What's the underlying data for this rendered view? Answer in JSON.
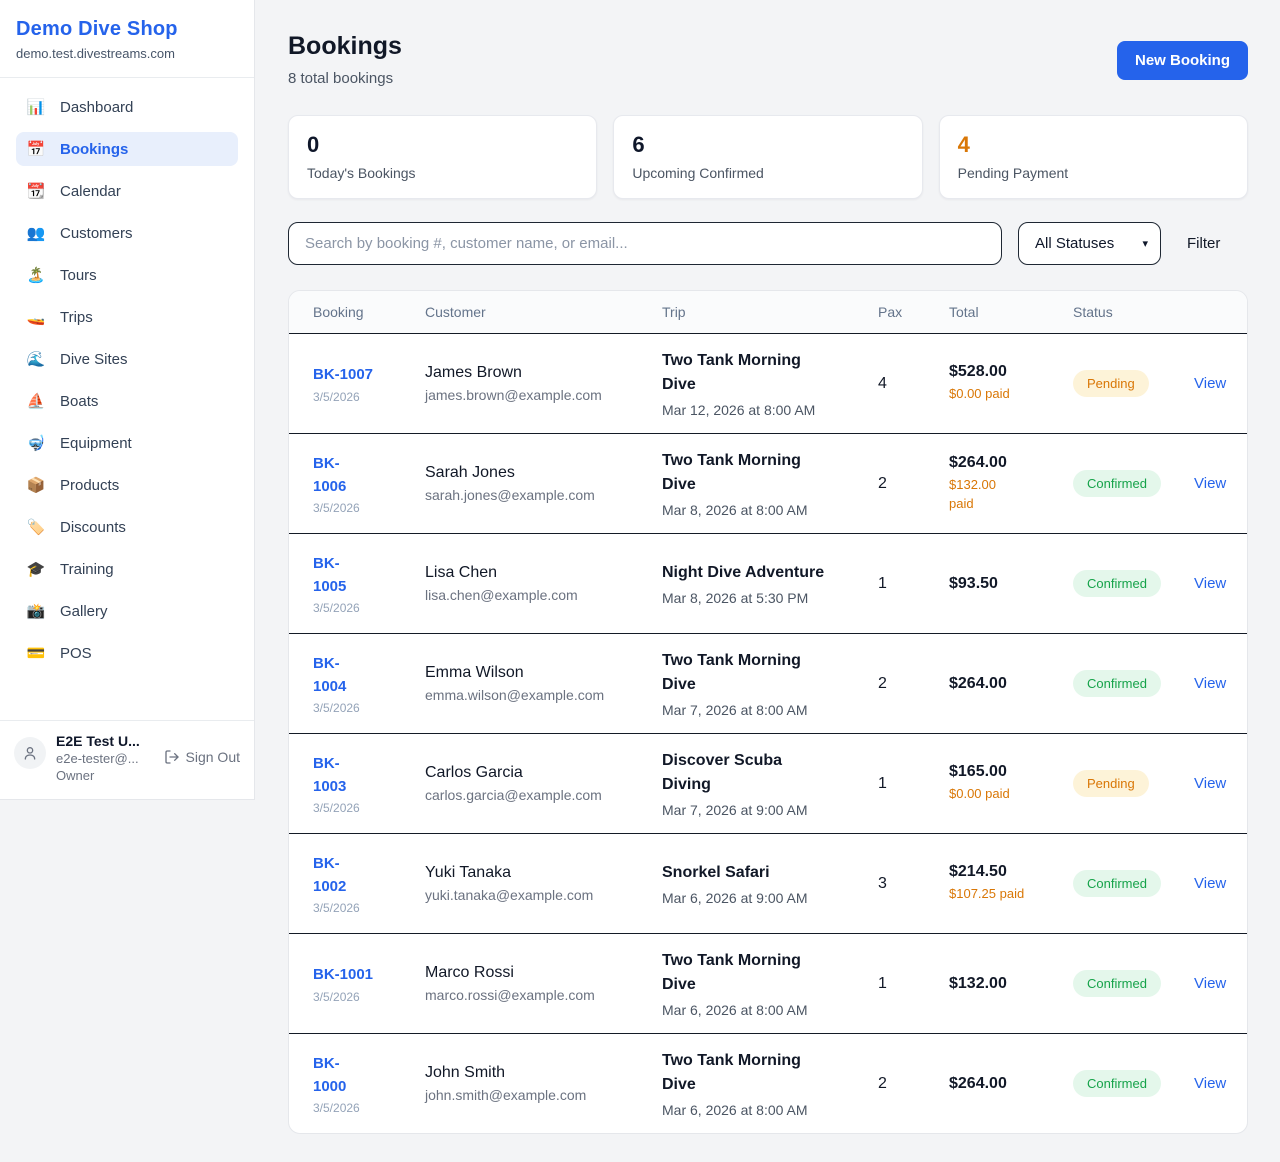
{
  "colors": {
    "accent": "#2563eb",
    "pending": "#d97706",
    "confirmed": "#16a34a"
  },
  "sidebar": {
    "shop_name": "Demo Dive Shop",
    "shop_domain": "demo.test.divestreams.com",
    "nav": [
      {
        "icon": "📊",
        "label": "Dashboard",
        "active": false
      },
      {
        "icon": "📅",
        "label": "Bookings",
        "active": true
      },
      {
        "icon": "📆",
        "label": "Calendar",
        "active": false
      },
      {
        "icon": "👥",
        "label": "Customers",
        "active": false
      },
      {
        "icon": "🏝️",
        "label": "Tours",
        "active": false
      },
      {
        "icon": "🚤",
        "label": "Trips",
        "active": false
      },
      {
        "icon": "🌊",
        "label": "Dive Sites",
        "active": false
      },
      {
        "icon": "⛵",
        "label": "Boats",
        "active": false
      },
      {
        "icon": "🤿",
        "label": "Equipment",
        "active": false
      },
      {
        "icon": "📦",
        "label": "Products",
        "active": false
      },
      {
        "icon": "🏷️",
        "label": "Discounts",
        "active": false
      },
      {
        "icon": "🎓",
        "label": "Training",
        "active": false
      },
      {
        "icon": "📸",
        "label": "Gallery",
        "active": false
      },
      {
        "icon": "💳",
        "label": "POS",
        "active": false
      }
    ],
    "user": {
      "name": "E2E Test U...",
      "email": "e2e-tester@...",
      "role": "Owner",
      "sign_out_label": "Sign Out"
    }
  },
  "header": {
    "title": "Bookings",
    "subtitle": "8 total bookings",
    "new_booking_label": "New Booking"
  },
  "stats": [
    {
      "value": "0",
      "label": "Today's Bookings",
      "highlight": false
    },
    {
      "value": "6",
      "label": "Upcoming Confirmed",
      "highlight": false
    },
    {
      "value": "4",
      "label": "Pending Payment",
      "highlight": true
    }
  ],
  "filters": {
    "search_placeholder": "Search by booking #, customer name, or email...",
    "status_selected": "All Statuses",
    "filter_label": "Filter"
  },
  "table": {
    "columns": [
      "Booking",
      "Customer",
      "Trip",
      "Pax",
      "Total",
      "Status"
    ],
    "view_label": "View",
    "rows": [
      {
        "id": "BK-1007",
        "date": "3/5/2026",
        "customer": "James Brown",
        "email": "james.brown@example.com",
        "trip": "Two Tank Morning\nDive",
        "trip_date": "Mar 12, 2026 at 8:00 AM",
        "pax": "4",
        "total": "$528.00",
        "paid": "$0.00 paid",
        "status": "Pending"
      },
      {
        "id": "BK-\n1006",
        "date": "3/5/2026",
        "customer": "Sarah Jones",
        "email": "sarah.jones@example.com",
        "trip": "Two Tank Morning\nDive",
        "trip_date": "Mar 8, 2026 at 8:00 AM",
        "pax": "2",
        "total": "$264.00",
        "paid": "$132.00\npaid",
        "status": "Confirmed"
      },
      {
        "id": "BK-\n1005",
        "date": "3/5/2026",
        "customer": "Lisa Chen",
        "email": "lisa.chen@example.com",
        "trip": "Night Dive Adventure",
        "trip_date": "Mar 8, 2026 at 5:30 PM",
        "pax": "1",
        "total": "$93.50",
        "paid": "",
        "status": "Confirmed"
      },
      {
        "id": "BK-\n1004",
        "date": "3/5/2026",
        "customer": "Emma Wilson",
        "email": "emma.wilson@example.com",
        "trip": "Two Tank Morning\nDive",
        "trip_date": "Mar 7, 2026 at 8:00 AM",
        "pax": "2",
        "total": "$264.00",
        "paid": "",
        "status": "Confirmed"
      },
      {
        "id": "BK-\n1003",
        "date": "3/5/2026",
        "customer": "Carlos Garcia",
        "email": "carlos.garcia@example.com",
        "trip": "Discover Scuba\nDiving",
        "trip_date": "Mar 7, 2026 at 9:00 AM",
        "pax": "1",
        "total": "$165.00",
        "paid": "$0.00 paid",
        "status": "Pending"
      },
      {
        "id": "BK-\n1002",
        "date": "3/5/2026",
        "customer": "Yuki Tanaka",
        "email": "yuki.tanaka@example.com",
        "trip": "Snorkel Safari",
        "trip_date": "Mar 6, 2026 at 9:00 AM",
        "pax": "3",
        "total": "$214.50",
        "paid": "$107.25 paid",
        "status": "Confirmed"
      },
      {
        "id": "BK-1001",
        "date": "3/5/2026",
        "customer": "Marco Rossi",
        "email": "marco.rossi@example.com",
        "trip": "Two Tank Morning\nDive",
        "trip_date": "Mar 6, 2026 at 8:00 AM",
        "pax": "1",
        "total": "$132.00",
        "paid": "",
        "status": "Confirmed"
      },
      {
        "id": "BK-\n1000",
        "date": "3/5/2026",
        "customer": "John Smith",
        "email": "john.smith@example.com",
        "trip": "Two Tank Morning\nDive",
        "trip_date": "Mar 6, 2026 at 8:00 AM",
        "pax": "2",
        "total": "$264.00",
        "paid": "",
        "status": "Confirmed"
      }
    ]
  }
}
